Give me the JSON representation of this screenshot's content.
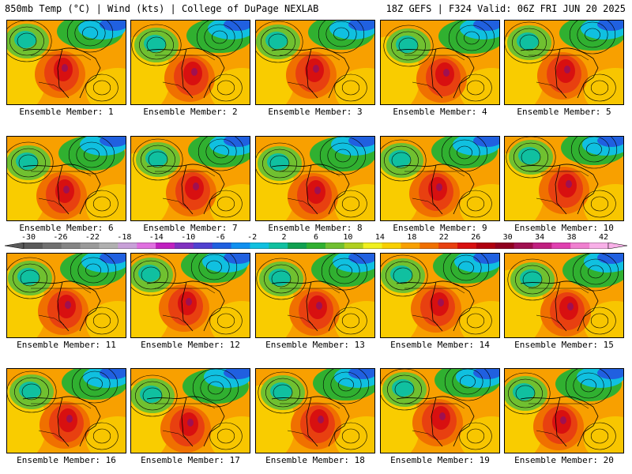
{
  "header": {
    "left": "850mb Temp (°C) | Wind (kts) | College of DuPage NEXLAB",
    "right": "18Z GEFS | F324 Valid: 06Z FRI JUN 20 2025"
  },
  "panels": [
    {
      "label": "Ensemble Member: 1"
    },
    {
      "label": "Ensemble Member: 2"
    },
    {
      "label": "Ensemble Member: 3"
    },
    {
      "label": "Ensemble Member: 4"
    },
    {
      "label": "Ensemble Member: 5"
    },
    {
      "label": "Ensemble Member: 6"
    },
    {
      "label": "Ensemble Member: 7"
    },
    {
      "label": "Ensemble Member: 8"
    },
    {
      "label": "Ensemble Member: 9"
    },
    {
      "label": "Ensemble Member: 10"
    },
    {
      "label": "Ensemble Member: 11"
    },
    {
      "label": "Ensemble Member: 12"
    },
    {
      "label": "Ensemble Member: 13"
    },
    {
      "label": "Ensemble Member: 14"
    },
    {
      "label": "Ensemble Member: 15"
    },
    {
      "label": "Ensemble Member: 16"
    },
    {
      "label": "Ensemble Member: 17"
    },
    {
      "label": "Ensemble Member: 18"
    },
    {
      "label": "Ensemble Member: 19"
    },
    {
      "label": "Ensemble Member: 20"
    }
  ],
  "colorbar": {
    "ticks": [
      "-30",
      "-26",
      "-22",
      "-18",
      "-14",
      "-10",
      "-6",
      "-2",
      "2",
      "6",
      "10",
      "14",
      "18",
      "22",
      "26",
      "30",
      "34",
      "38",
      "42"
    ],
    "colors": [
      "#5a5a5a",
      "#707070",
      "#858585",
      "#9a9a9a",
      "#b0b0b0",
      "#c8a0d8",
      "#e070e0",
      "#c020c0",
      "#8030c0",
      "#5040d0",
      "#2060e0",
      "#1090f0",
      "#10c0e0",
      "#10c0a0",
      "#10a050",
      "#30b030",
      "#70c030",
      "#b0d020",
      "#f0f020",
      "#f8d000",
      "#f8a000",
      "#f07000",
      "#e84010",
      "#d81010",
      "#b00010",
      "#900020",
      "#a01050",
      "#c02080",
      "#e040b0",
      "#f080d0",
      "#f8b0e8"
    ]
  }
}
